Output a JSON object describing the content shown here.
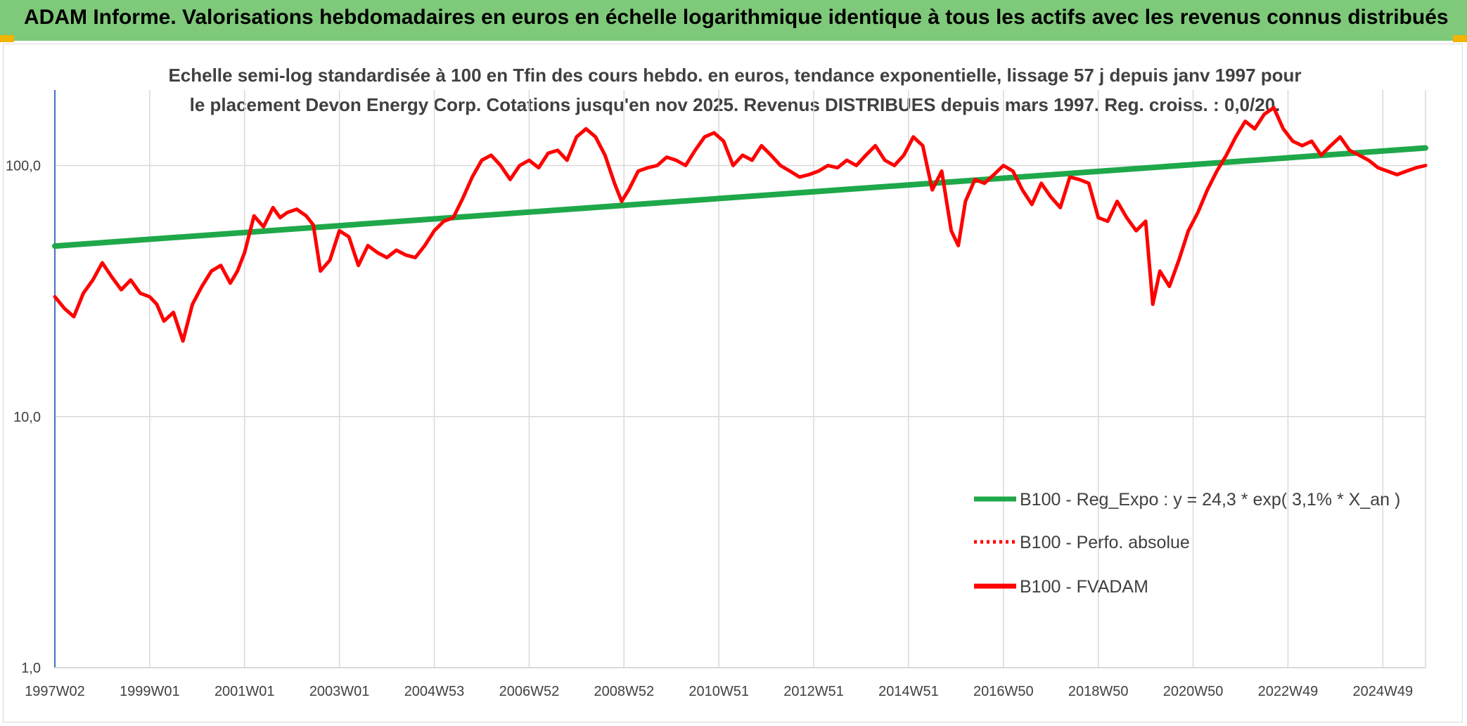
{
  "banner": {
    "title": "ADAM Informe. Valorisations hebdomadaires en euros en échelle logarithmique identique à tous les actifs avec les revenus connus distribués",
    "color": "#7fc97a"
  },
  "chart_data": {
    "type": "line",
    "title": "Echelle semi-log standardisée à 100 en Tfin des cours hebdo. en euros, tendance exponentielle, lissage 57 j depuis janv 1997 pour le placement Devon Energy Corp. Cotations jusqu'en nov 2025. Revenus DISTRIBUES depuis mars 1997. Reg. croiss. : 0,0/20.",
    "y_scale": "log",
    "ylim": [
      1,
      200
    ],
    "xlim": [
      1997.0,
      2025.9
    ],
    "grid": true,
    "legend_position": "bottom-right",
    "y_ticks": [
      {
        "value": 1,
        "label": "1,0"
      },
      {
        "value": 10,
        "label": "10,0"
      },
      {
        "value": 100,
        "label": "100,0"
      }
    ],
    "x_ticks": [
      {
        "value": 1997.0,
        "label": "1997W02"
      },
      {
        "value": 1999.0,
        "label": "1999W01"
      },
      {
        "value": 2001.0,
        "label": "2001W01"
      },
      {
        "value": 2003.0,
        "label": "2003W01"
      },
      {
        "value": 2005.0,
        "label": "2004W53"
      },
      {
        "value": 2007.0,
        "label": "2006W52"
      },
      {
        "value": 2009.0,
        "label": "2008W52"
      },
      {
        "value": 2011.0,
        "label": "2010W51"
      },
      {
        "value": 2013.0,
        "label": "2012W51"
      },
      {
        "value": 2015.0,
        "label": "2014W51"
      },
      {
        "value": 2017.0,
        "label": "2016W50"
      },
      {
        "value": 2019.0,
        "label": "2018W50"
      },
      {
        "value": 2021.0,
        "label": "2020W50"
      },
      {
        "value": 2023.0,
        "label": "2022W49"
      },
      {
        "value": 2025.0,
        "label": "2024W49"
      }
    ],
    "series": [
      {
        "name": "B100 - Reg_Expo : y = 24,3 * exp( 3,1% *  X_an )",
        "color": "#1fa84a",
        "style": "solid",
        "x": [
          1997.0,
          2025.9
        ],
        "y": [
          47.8,
          117.5
        ]
      },
      {
        "name": "B100 - Perfo. absolue",
        "color": "#ff0000",
        "style": "dotted",
        "x": [],
        "y": []
      },
      {
        "name": "B100 - FVADAM",
        "color": "#ff0000",
        "style": "solid",
        "x": [
          1997.0,
          1997.2,
          1997.4,
          1997.6,
          1997.8,
          1998.0,
          1998.2,
          1998.4,
          1998.6,
          1998.8,
          1999.0,
          1999.15,
          1999.3,
          1999.5,
          1999.7,
          1999.9,
          2000.1,
          2000.3,
          2000.5,
          2000.7,
          2000.85,
          2001.0,
          2001.2,
          2001.4,
          2001.6,
          2001.75,
          2001.9,
          2002.1,
          2002.3,
          2002.45,
          2002.6,
          2002.8,
          2003.0,
          2003.2,
          2003.4,
          2003.6,
          2003.8,
          2004.0,
          2004.2,
          2004.4,
          2004.6,
          2004.8,
          2005.0,
          2005.2,
          2005.4,
          2005.6,
          2005.8,
          2006.0,
          2006.2,
          2006.4,
          2006.6,
          2006.8,
          2007.0,
          2007.2,
          2007.4,
          2007.6,
          2007.8,
          2008.0,
          2008.2,
          2008.4,
          2008.6,
          2008.8,
          2008.95,
          2009.1,
          2009.3,
          2009.5,
          2009.7,
          2009.9,
          2010.1,
          2010.3,
          2010.5,
          2010.7,
          2010.9,
          2011.1,
          2011.3,
          2011.5,
          2011.7,
          2011.9,
          2012.1,
          2012.3,
          2012.5,
          2012.7,
          2012.9,
          2013.1,
          2013.3,
          2013.5,
          2013.7,
          2013.9,
          2014.1,
          2014.3,
          2014.5,
          2014.7,
          2014.9,
          2015.1,
          2015.3,
          2015.5,
          2015.7,
          2015.9,
          2016.05,
          2016.2,
          2016.4,
          2016.6,
          2016.8,
          2017.0,
          2017.2,
          2017.4,
          2017.6,
          2017.8,
          2018.0,
          2018.2,
          2018.4,
          2018.6,
          2018.8,
          2019.0,
          2019.2,
          2019.4,
          2019.6,
          2019.8,
          2020.0,
          2020.15,
          2020.3,
          2020.5,
          2020.7,
          2020.9,
          2021.1,
          2021.3,
          2021.5,
          2021.7,
          2021.9,
          2022.1,
          2022.3,
          2022.5,
          2022.7,
          2022.9,
          2023.1,
          2023.3,
          2023.5,
          2023.7,
          2023.9,
          2024.1,
          2024.3,
          2024.5,
          2024.7,
          2024.9,
          2025.1,
          2025.3,
          2025.5,
          2025.7,
          2025.9
        ],
        "y": [
          30,
          27,
          25,
          31,
          35,
          41,
          36,
          32,
          35,
          31,
          30,
          28,
          24,
          26,
          20,
          28,
          33,
          38,
          40,
          34,
          38,
          45,
          63,
          57,
          68,
          62,
          65,
          67,
          63,
          58,
          38,
          42,
          55,
          52,
          40,
          48,
          45,
          43,
          46,
          44,
          43,
          48,
          55,
          60,
          62,
          74,
          90,
          105,
          110,
          100,
          88,
          100,
          105,
          98,
          112,
          115,
          105,
          130,
          140,
          130,
          110,
          85,
          72,
          80,
          95,
          98,
          100,
          108,
          105,
          100,
          115,
          130,
          135,
          125,
          100,
          110,
          105,
          120,
          110,
          100,
          95,
          90,
          92,
          95,
          100,
          98,
          105,
          100,
          110,
          120,
          105,
          100,
          110,
          130,
          120,
          80,
          95,
          55,
          48,
          72,
          88,
          85,
          92,
          100,
          95,
          80,
          70,
          85,
          75,
          68,
          90,
          88,
          85,
          62,
          60,
          72,
          62,
          55,
          60,
          28,
          38,
          33,
          42,
          55,
          65,
          80,
          95,
          110,
          130,
          150,
          140,
          160,
          170,
          140,
          125,
          120,
          125,
          110,
          120,
          130,
          115,
          110,
          105,
          98,
          95,
          92,
          95,
          98,
          100
        ]
      }
    ]
  }
}
